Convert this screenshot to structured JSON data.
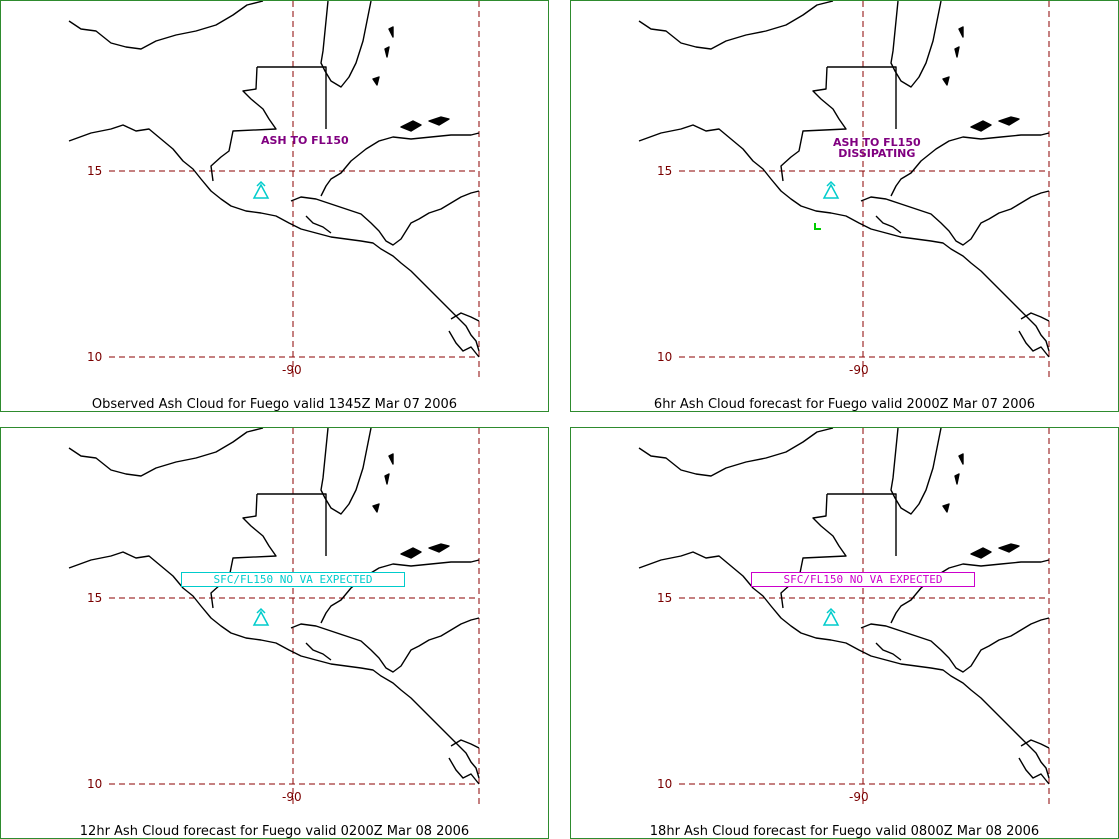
{
  "panels": [
    {
      "caption": "Observed Ash Cloud for Fuego valid 1345Z Mar 07 2006",
      "lat_labels": [
        "15",
        "10"
      ],
      "lon_label": "-90",
      "annotation": {
        "lines": [
          "ASH TO FL150"
        ],
        "style": "text",
        "color": "#800080"
      },
      "volcano_icon": "volcano-icon"
    },
    {
      "caption": "6hr Ash Cloud forecast for Fuego valid 2000Z Mar 07 2006",
      "lat_labels": [
        "15",
        "10"
      ],
      "lon_label": "-90",
      "annotation": {
        "lines": [
          "ASH TO FL150",
          "DISSIPATING"
        ],
        "style": "text",
        "color": "#800080"
      },
      "volcano_icon": "volcano-icon",
      "extra_mark": {
        "color": "#00cc00"
      }
    },
    {
      "caption": "12hr Ash Cloud forecast for Fuego valid 0200Z Mar 08 2006",
      "lat_labels": [
        "15",
        "10"
      ],
      "lon_label": "-90",
      "annotation": {
        "lines": [
          "SFC/FL150 NO VA EXPECTED"
        ],
        "style": "box",
        "color": "#00cccc"
      },
      "volcano_icon": "volcano-icon"
    },
    {
      "caption": "18hr Ash Cloud forecast for Fuego valid 0800Z Mar 08 2006",
      "lat_labels": [
        "15",
        "10"
      ],
      "lon_label": "-90",
      "annotation": {
        "lines": [
          "SFC/FL150 NO VA EXPECTED"
        ],
        "style": "box",
        "color": "#cc00cc"
      },
      "volcano_icon": "volcano-icon"
    }
  ],
  "colors": {
    "border": "#2e8b2e",
    "grid": "#8b0000",
    "coast": "#000000",
    "volcano": "#00cccc"
  }
}
